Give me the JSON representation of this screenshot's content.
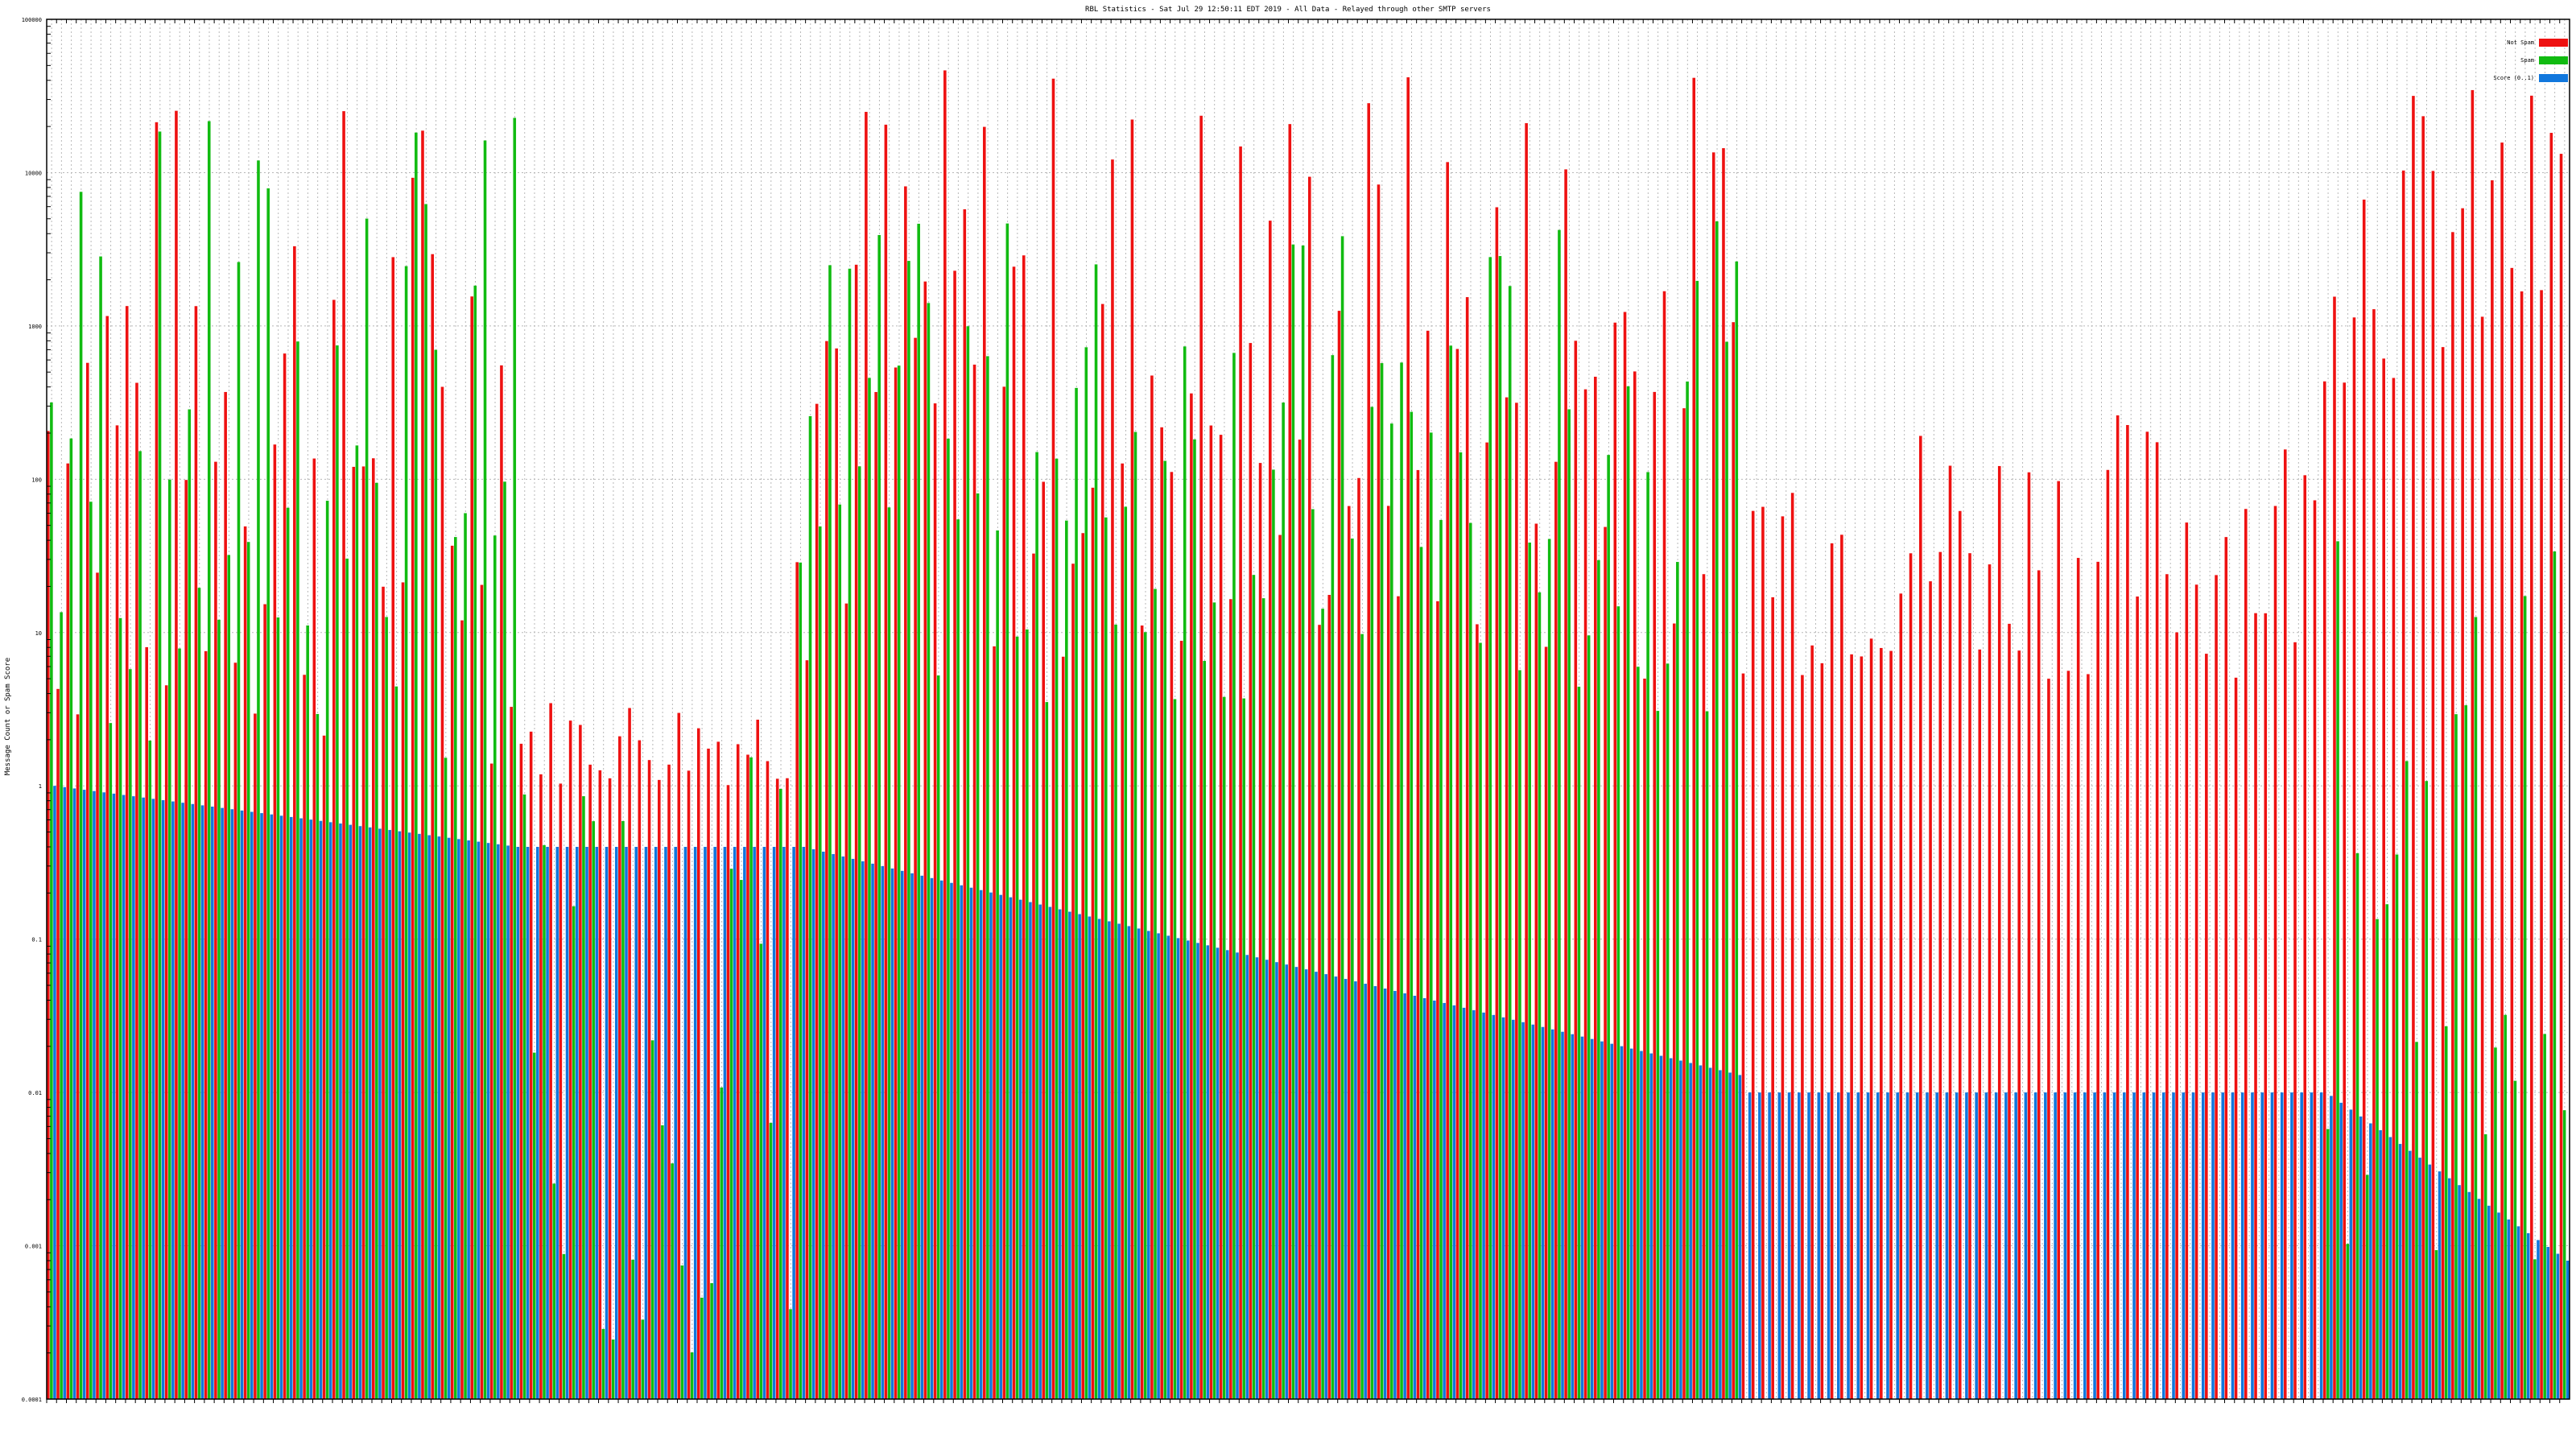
{
  "chart_data": {
    "type": "bar",
    "title": "RBL Statistics - Sat Jul 29 12:50:11 EDT 2019 - All Data - Relayed through other SMTP servers",
    "ylabel": "Message Count or Spam Score",
    "xlabel": "",
    "y_scale": "log",
    "ylim": [
      0.0001,
      100000
    ],
    "y_ticks": [
      "0.0001",
      "0.001",
      "0.01",
      "0.1",
      "1",
      "10",
      "100",
      "1000",
      "10000",
      "100000"
    ],
    "grid": true,
    "legend_position": "top-right",
    "num_categories": 256,
    "series": [
      {
        "name": "Not Spam",
        "color": "#ee1111"
      },
      {
        "name": "Spam",
        "color": "#11bb11"
      },
      {
        "name": "Score (0..1)",
        "color": "#1177dd"
      }
    ],
    "segments": [
      {
        "count": 48,
        "score_from": 1.0,
        "score_to": 0.4,
        "notspam_min": 1.3,
        "notspam_max": 40000,
        "spam_min": 1.2,
        "spam_max": 25000
      },
      {
        "count": 28,
        "score_from": 0.4,
        "score_to": 0.4,
        "notspam_min": 1,
        "notspam_max": 4,
        "spam_min": 0.0002,
        "spam_max": 3
      },
      {
        "count": 96,
        "score_from": 0.4,
        "score_to": 0.013,
        "notspam_min": 5,
        "notspam_max": 60000,
        "spam_min": 3,
        "spam_max": 5000
      },
      {
        "count": 59,
        "score_from": 0.01,
        "score_to": 0.01,
        "notspam_min": 5,
        "notspam_max": 300,
        "spam_min": 0.0001,
        "spam_max": 0.0001
      },
      {
        "count": 25,
        "score_from": 0.0095,
        "score_to": 0.0008,
        "notspam_min": 400,
        "notspam_max": 40000,
        "spam_min": 0.0008,
        "spam_max": 40
      }
    ]
  }
}
